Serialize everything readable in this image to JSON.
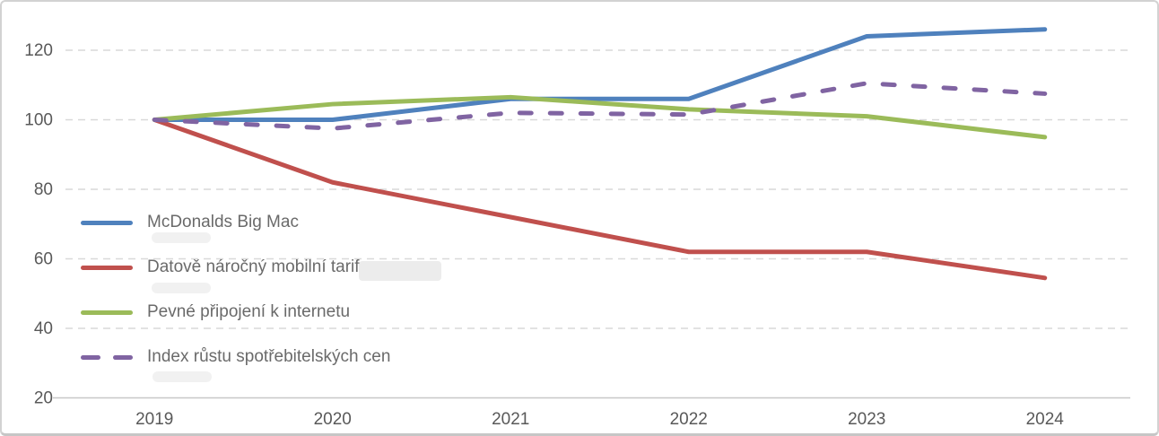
{
  "chart_data": {
    "type": "line",
    "title": "",
    "xlabel": "",
    "ylabel": "",
    "categories": [
      "2019",
      "2020",
      "2021",
      "2022",
      "2023",
      "2024"
    ],
    "series": [
      {
        "name": "McDonalds Big Mac",
        "color": "#4f81bd",
        "dash": "solid",
        "values": [
          100,
          100,
          106,
          106,
          124,
          126
        ]
      },
      {
        "name": "Datově náročný mobilní tarif",
        "color": "#c0504d",
        "dash": "solid",
        "values": [
          100,
          82,
          72,
          62,
          62,
          54.5
        ]
      },
      {
        "name": "Pevné připojení k internetu",
        "color": "#9bbb59",
        "dash": "solid",
        "values": [
          100,
          104.5,
          106.5,
          103,
          101,
          95
        ]
      },
      {
        "name": "Index růstu spotřebitelských cen",
        "color": "#8064a2",
        "dash": "dashed",
        "values": [
          100,
          97.5,
          102,
          101.5,
          110.5,
          107.5
        ]
      }
    ],
    "y_ticks": [
      20,
      40,
      60,
      80,
      100,
      120
    ],
    "ylim": [
      20,
      133
    ],
    "grid": "horizontal-dashed",
    "legend_position": "inside-left",
    "colors": {
      "axis_text": "#595959",
      "gridline": "#d9d9d9",
      "baseline": "#c8c8c8"
    }
  }
}
